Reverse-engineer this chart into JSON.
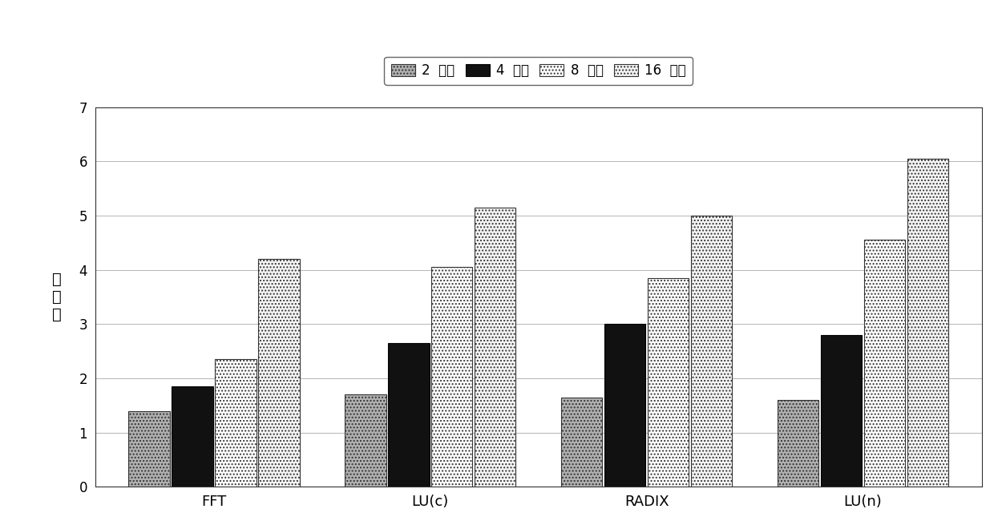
{
  "categories": [
    "FFT",
    "LU(c)",
    "RADIX",
    "LU(n)"
  ],
  "series": {
    "2 线程": [
      1.4,
      1.7,
      1.65,
      1.6
    ],
    "4 线程": [
      1.85,
      2.65,
      3.0,
      2.8
    ],
    "8 线程": [
      2.35,
      4.05,
      3.85,
      4.55
    ],
    "16 线程": [
      4.2,
      5.15,
      5.0,
      6.05
    ]
  },
  "colors": [
    "#b0b0b0",
    "#111111",
    "#ffffff",
    "#f5f5f5"
  ],
  "hatches": [
    "....",
    "",
    "....",
    "...."
  ],
  "hatch_colors": [
    "#888888",
    "#111111",
    "#cccccc",
    "#aaaaaa"
  ],
  "bar_edge_colors": [
    "#333333",
    "#000000",
    "#333333",
    "#333333"
  ],
  "ylabel_lines": [
    "加",
    "速",
    "比"
  ],
  "ylim": [
    0,
    7
  ],
  "yticks": [
    0,
    1,
    2,
    3,
    4,
    5,
    6,
    7
  ],
  "legend_labels": [
    "2  线程",
    "4  线程",
    "8  线程",
    "16  线程"
  ],
  "legend_colors": [
    "#b0b0b0",
    "#111111",
    "#ffffff",
    "#f5f5f5"
  ],
  "legend_hatches": [
    "....",
    "",
    "....",
    "...."
  ],
  "legend_hatch_colors": [
    "#888888",
    "#111111",
    "#cccccc",
    "#aaaaaa"
  ],
  "bar_width": 0.2,
  "background_color": "#ffffff",
  "grid_color": "#aaaaaa",
  "x_label_fontsize": 13,
  "y_tick_fontsize": 12
}
